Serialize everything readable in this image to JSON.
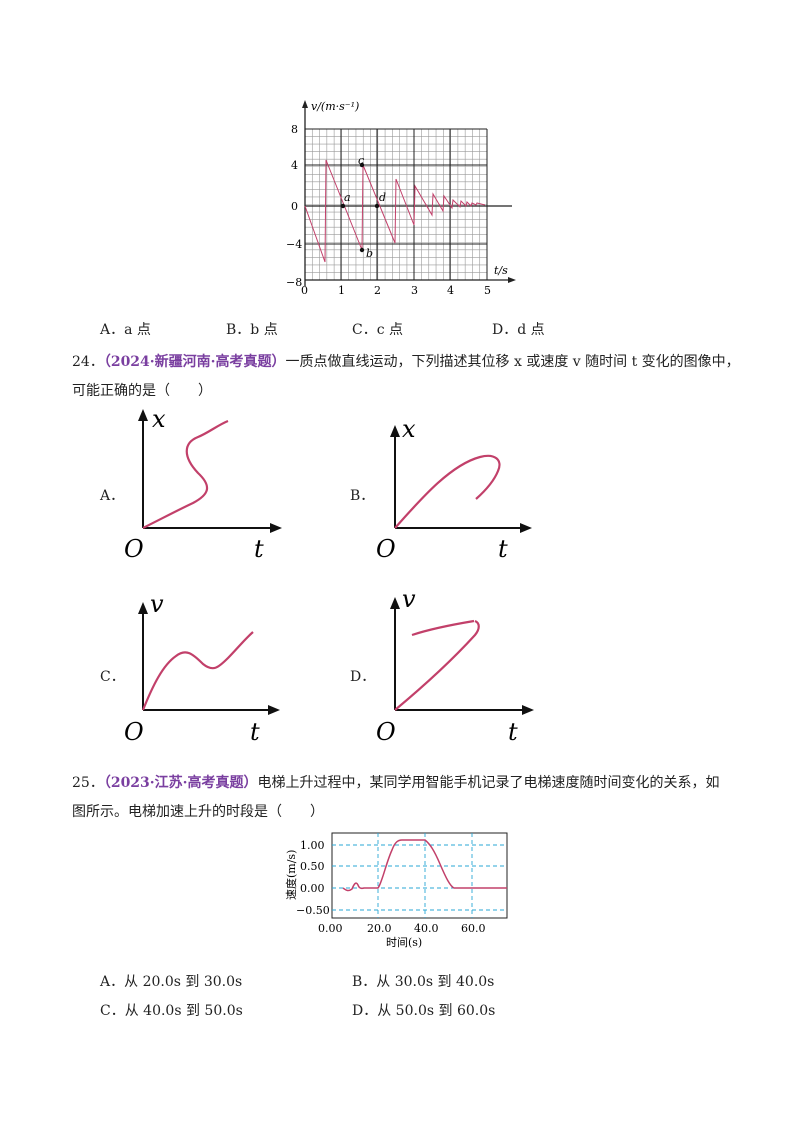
{
  "q23": {
    "figure": {
      "y_axis_label": "v/(m·s⁻¹)",
      "x_axis_label": "t/s",
      "y_ticks": [
        "8",
        "4",
        "0",
        "−4",
        "−8"
      ],
      "x_ticks": [
        "0",
        "1",
        "2",
        "3",
        "4",
        "5"
      ],
      "points": [
        "a",
        "b",
        "c",
        "d"
      ]
    },
    "options": [
      {
        "letter": "A．",
        "text": "a 点"
      },
      {
        "letter": "B．",
        "text": "b 点"
      },
      {
        "letter": "C．",
        "text": "c 点"
      },
      {
        "letter": "D．",
        "text": "d 点"
      }
    ]
  },
  "q24": {
    "number": "24．",
    "source": "（2024·新疆河南·高考真题）",
    "stem_line1": "一质点做直线运动，下列描述其位移 x 或速度 v 随时间 t 变化的图像中，",
    "stem_line2": "可能正确的是（　　）",
    "graphs": [
      {
        "letter": "A．",
        "y": "x",
        "origin": "O",
        "x": "t"
      },
      {
        "letter": "B．",
        "y": "x",
        "origin": "O",
        "x": "t"
      },
      {
        "letter": "C．",
        "y": "v",
        "origin": "O",
        "x": "t"
      },
      {
        "letter": "D．",
        "y": "v",
        "origin": "O",
        "x": "t"
      }
    ]
  },
  "q25": {
    "number": "25．",
    "source": "（2023·江苏·高考真题）",
    "stem_line1": "电梯上升过程中，某同学用智能手机记录了电梯速度随时间变化的关系，如",
    "stem_line2": "图所示。电梯加速上升的时段是（　　）",
    "chart": {
      "ylabel": "速度(m/s)",
      "xlabel": "时间(s)",
      "y_ticks": [
        "1.00",
        "0.50",
        "0.00",
        "−0.50"
      ],
      "x_ticks": [
        "0.00",
        "20.0",
        "40.0",
        "60.0"
      ]
    },
    "options": [
      {
        "letter": "A．",
        "text": "从 20.0s 到 30.0s"
      },
      {
        "letter": "B．",
        "text": "从 30.0s 到 40.0s"
      },
      {
        "letter": "C．",
        "text": "从 40.0s 到 50.0s"
      },
      {
        "letter": "D．",
        "text": "从 50.0s 到 60.0s"
      }
    ]
  },
  "colors": {
    "curve": "#c2406a",
    "source": "#7a3fa0",
    "grid_dash": "#2aa7d6"
  }
}
